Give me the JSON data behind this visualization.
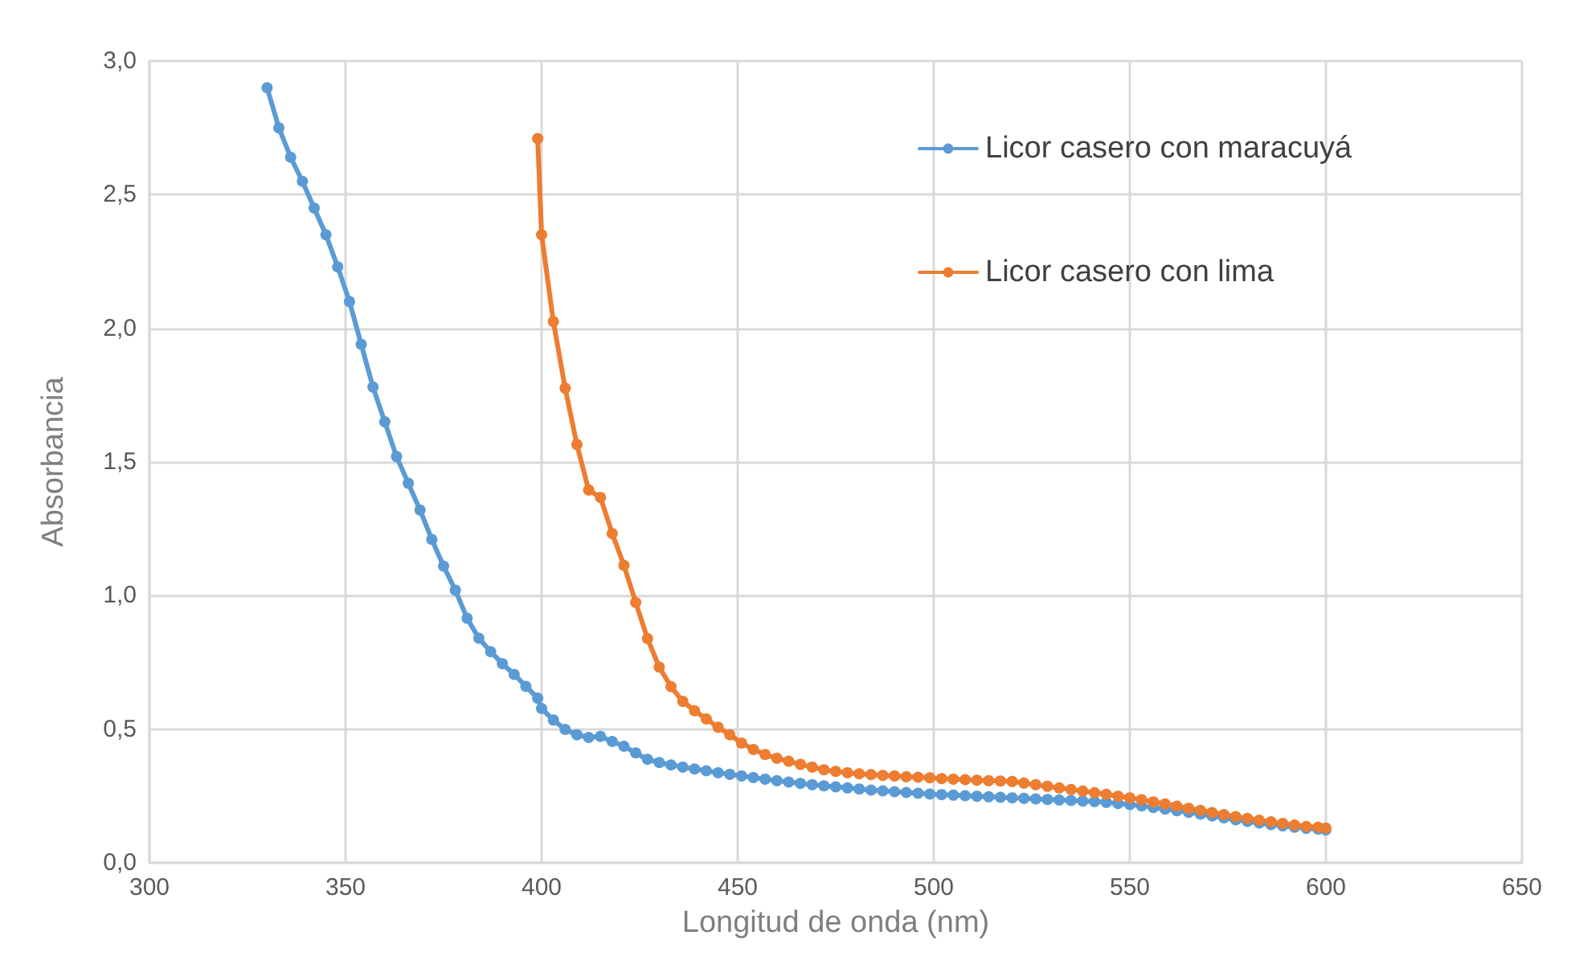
{
  "chart_data": {
    "type": "line",
    "xlabel": "Longitud de onda (nm)",
    "ylabel": "Absorbancia",
    "xlim": [
      300,
      650
    ],
    "xticks": [
      300,
      350,
      400,
      450,
      500,
      550,
      600,
      650
    ],
    "ylim": [
      0,
      3
    ],
    "yticks": [
      {
        "value": 0,
        "label": "0,0"
      },
      {
        "value": 0.5,
        "label": "0,5"
      },
      {
        "value": 1,
        "label": "1,0"
      },
      {
        "value": 1.5,
        "label": "1,5"
      },
      {
        "value": 2,
        "label": "2,0"
      },
      {
        "value": 2.5,
        "label": "2,5"
      },
      {
        "value": 3,
        "label": "3,0"
      }
    ],
    "grid": true,
    "legend": "top right",
    "marker": "circle",
    "line_style": "solid",
    "series": [
      {
        "name": "Licor casero con maracuyá",
        "color": "#5b9bd5",
        "x": [
          330,
          333,
          336,
          339,
          342,
          345,
          348,
          351,
          354,
          357,
          360,
          363,
          366,
          369,
          372,
          375,
          378,
          381,
          384,
          387,
          390,
          393,
          396,
          399,
          400,
          403,
          406,
          409,
          412,
          415,
          418,
          421,
          424,
          427,
          430,
          433,
          436,
          439,
          442,
          445,
          448,
          451,
          454,
          457,
          460,
          463,
          466,
          469,
          472,
          475,
          478,
          481,
          484,
          487,
          490,
          493,
          496,
          499,
          502,
          505,
          508,
          511,
          514,
          517,
          520,
          523,
          526,
          529,
          532,
          535,
          538,
          541,
          544,
          547,
          550,
          553,
          556,
          559,
          562,
          565,
          568,
          571,
          574,
          577,
          580,
          583,
          586,
          589,
          592,
          595,
          598,
          600
        ],
        "values": [
          2.9,
          2.75,
          2.64,
          2.55,
          2.45,
          2.35,
          2.23,
          2.1,
          1.94,
          1.78,
          1.65,
          1.52,
          1.42,
          1.32,
          1.21,
          1.11,
          1.02,
          0.915,
          0.84,
          0.79,
          0.745,
          0.705,
          0.66,
          0.616,
          0.577,
          0.534,
          0.499,
          0.479,
          0.469,
          0.473,
          0.454,
          0.436,
          0.411,
          0.387,
          0.375,
          0.366,
          0.358,
          0.351,
          0.344,
          0.337,
          0.331,
          0.325,
          0.319,
          0.313,
          0.307,
          0.302,
          0.297,
          0.292,
          0.288,
          0.284,
          0.28,
          0.276,
          0.272,
          0.269,
          0.266,
          0.263,
          0.26,
          0.257,
          0.255,
          0.253,
          0.251,
          0.249,
          0.247,
          0.245,
          0.243,
          0.241,
          0.239,
          0.237,
          0.235,
          0.233,
          0.231,
          0.229,
          0.226,
          0.222,
          0.218,
          0.213,
          0.207,
          0.201,
          0.195,
          0.189,
          0.182,
          0.175,
          0.168,
          0.161,
          0.155,
          0.149,
          0.143,
          0.138,
          0.133,
          0.129,
          0.126,
          0.123
        ]
      },
      {
        "name": "Licor casero con lima",
        "color": "#ed7d31",
        "x": [
          399,
          400,
          403,
          406,
          409,
          412,
          415,
          418,
          421,
          424,
          427,
          430,
          433,
          436,
          439,
          442,
          445,
          448,
          451,
          454,
          457,
          460,
          463,
          466,
          469,
          472,
          475,
          478,
          481,
          484,
          487,
          490,
          493,
          496,
          499,
          502,
          505,
          508,
          511,
          514,
          517,
          520,
          523,
          526,
          529,
          532,
          535,
          538,
          541,
          544,
          547,
          550,
          553,
          556,
          559,
          562,
          565,
          568,
          571,
          574,
          577,
          580,
          583,
          586,
          589,
          592,
          595,
          598,
          600
        ],
        "values": [
          2.71,
          2.35,
          2.025,
          1.776,
          1.565,
          1.395,
          1.367,
          1.232,
          1.113,
          0.974,
          0.839,
          0.732,
          0.659,
          0.604,
          0.569,
          0.538,
          0.507,
          0.479,
          0.448,
          0.424,
          0.405,
          0.391,
          0.38,
          0.368,
          0.358,
          0.348,
          0.342,
          0.337,
          0.333,
          0.33,
          0.327,
          0.325,
          0.322,
          0.32,
          0.318,
          0.315,
          0.313,
          0.311,
          0.309,
          0.307,
          0.306,
          0.304,
          0.298,
          0.292,
          0.286,
          0.28,
          0.274,
          0.268,
          0.262,
          0.256,
          0.249,
          0.243,
          0.236,
          0.228,
          0.22,
          0.212,
          0.204,
          0.196,
          0.188,
          0.18,
          0.173,
          0.166,
          0.159,
          0.153,
          0.147,
          0.141,
          0.136,
          0.133,
          0.13
        ]
      }
    ]
  }
}
